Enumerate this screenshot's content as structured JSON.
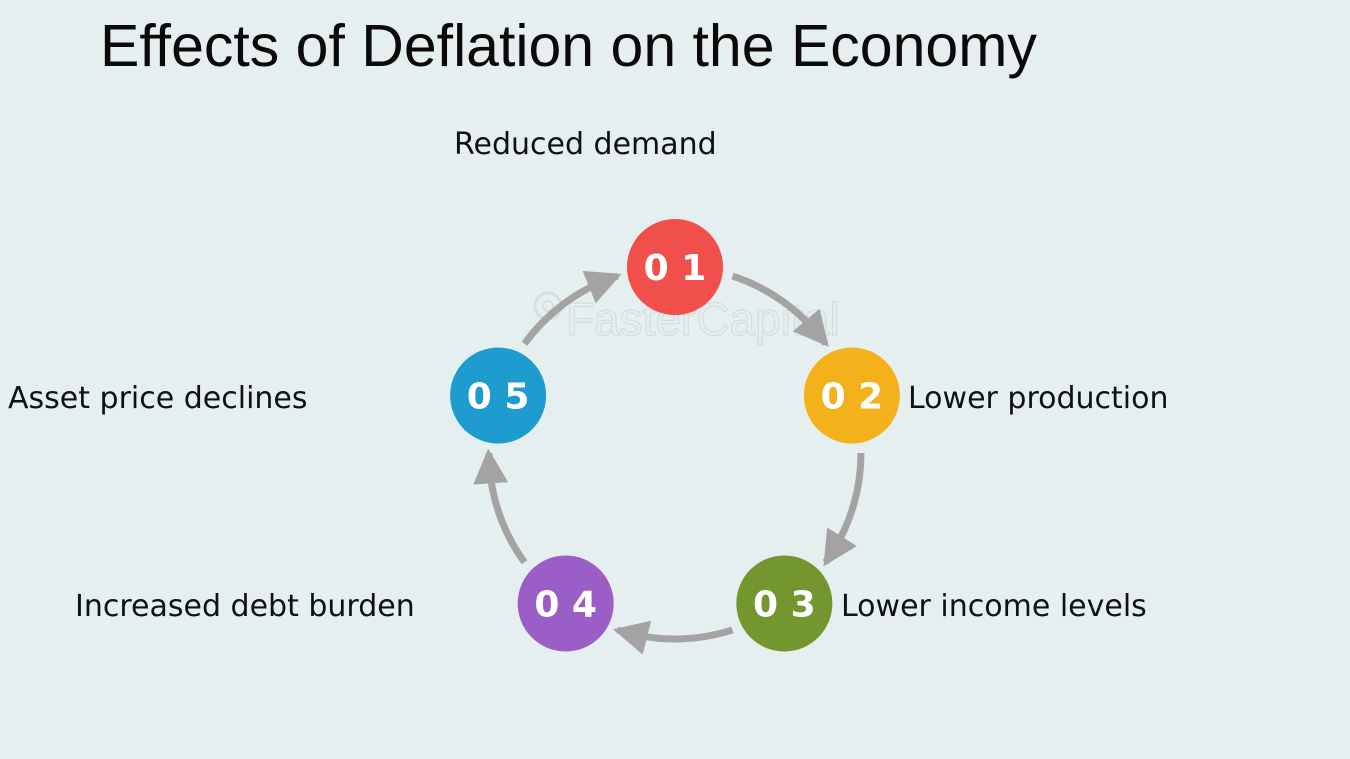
{
  "title": "Effects of Deflation on the Economy",
  "watermark": "FasterCapital",
  "colors": {
    "ring": "#a3a3a3",
    "step_1": "#f04f4b",
    "step_2": "#f3b11c",
    "step_3": "#73962f",
    "step_4": "#9b5ec6",
    "step_5": "#1e9bcf"
  },
  "steps": [
    {
      "number": "0 1",
      "label": "Reduced demand"
    },
    {
      "number": "0 2",
      "label": "Lower production"
    },
    {
      "number": "0 3",
      "label": "Lower income levels"
    },
    {
      "number": "0 4",
      "label": "Increased debt burden"
    },
    {
      "number": "0 5",
      "label": "Asset price declines"
    }
  ]
}
